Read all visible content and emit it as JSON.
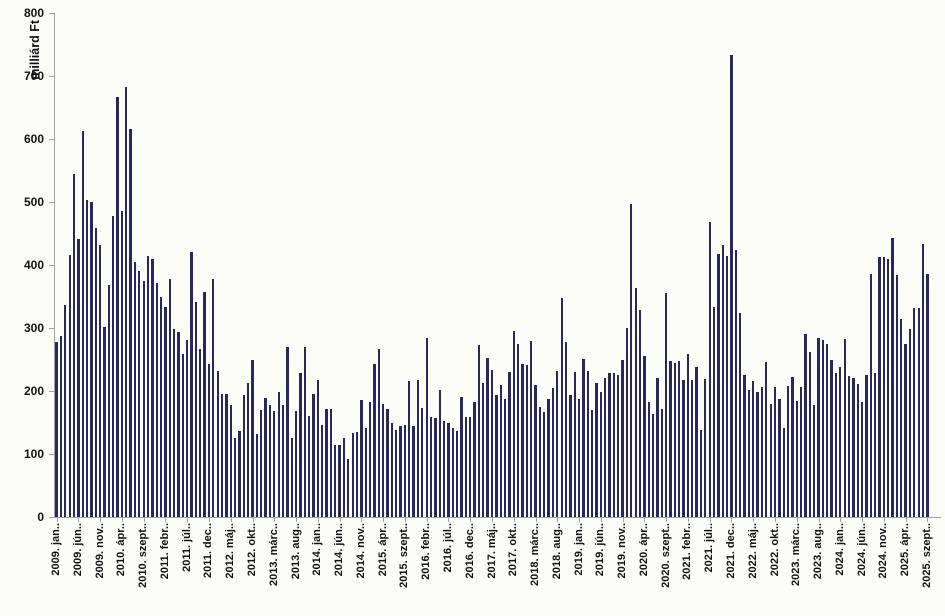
{
  "chart_data": {
    "type": "bar",
    "title": "",
    "ylabel": "milliárd Ft",
    "xlabel": "",
    "ylim": [
      0,
      800
    ],
    "y_ticks": [
      0,
      100,
      200,
      300,
      400,
      500,
      600,
      700,
      800
    ],
    "grid": "off",
    "legend_position": "none",
    "bar_color": "#28285e",
    "axis_color": "#a3a3a3",
    "text_color": "#111111",
    "background_color": "#fdfdf8",
    "x_tick_interval": 5,
    "period_start": "2009. jan",
    "period_end": "2025. szept",
    "x_tick_labels": [
      "2009. jan..",
      "2009. jún..",
      "2009. nov..",
      "2010. ápr..",
      "2010. szept..",
      "2011. febr..",
      "2011. júl..",
      "2011. dec..",
      "2012. máj..",
      "2012. okt..",
      "2013. márc..",
      "2013. aug..",
      "2014. jan..",
      "2014. jún..",
      "2014. nov..",
      "2015. ápr..",
      "2015. szept..",
      "2016. febr..",
      "2016. júl..",
      "2016. dec..",
      "2017. máj..",
      "2017. okt..",
      "2018. márc..",
      "2018. aug..",
      "2019. jan..",
      "2019. jún..",
      "2019. nov..",
      "2020. ápr..",
      "2020. szept..",
      "2021. febr..",
      "2021. júl..",
      "2021. dec..",
      "2022. máj..",
      "2022. okt..",
      "2023. márc..",
      "2023. aug..",
      "2024. jan..",
      "2024. jún..",
      "2024. nov..",
      "2025. ápr..",
      "2025. szept.."
    ],
    "values": [
      277,
      288,
      336,
      416,
      545,
      441,
      613,
      503,
      500,
      458,
      432,
      302,
      368,
      478,
      667,
      485,
      683,
      616,
      405,
      390,
      375,
      414,
      410,
      371,
      350,
      333,
      378,
      298,
      294,
      259,
      281,
      420,
      341,
      266,
      357,
      243,
      378,
      232,
      196,
      195,
      178,
      126,
      137,
      194,
      212,
      249,
      131,
      170,
      189,
      177,
      169,
      198,
      178,
      270,
      125,
      168,
      228,
      270,
      161,
      196,
      217,
      146,
      172,
      172,
      114,
      115,
      125,
      92,
      133,
      135,
      185,
      142,
      182,
      243,
      267,
      180,
      172,
      150,
      138,
      144,
      146,
      216,
      144,
      218,
      173,
      284,
      159,
      157,
      201,
      153,
      150,
      141,
      137,
      190,
      158,
      159,
      182,
      273,
      213,
      253,
      233,
      194,
      209,
      188,
      230,
      296,
      274,
      243,
      241,
      280,
      210,
      175,
      166,
      187,
      205,
      231,
      347,
      277,
      193,
      230,
      188,
      251,
      232,
      170,
      213,
      198,
      220,
      228,
      228,
      226,
      250,
      300,
      497,
      363,
      328,
      256,
      183,
      164,
      220,
      172,
      355,
      247,
      245,
      247,
      217,
      259,
      218,
      238,
      138,
      219,
      468,
      333,
      418,
      431,
      415,
      733,
      424,
      324,
      225,
      202,
      216,
      198,
      206,
      246,
      180,
      206,
      187,
      142,
      208,
      223,
      184,
      206,
      291,
      262,
      177,
      284,
      281,
      274,
      250,
      229,
      238,
      282,
      224,
      221,
      211,
      183,
      225,
      386,
      229,
      413,
      413,
      410,
      443,
      384,
      314,
      275,
      299,
      331,
      331,
      434,
      385
    ]
  }
}
